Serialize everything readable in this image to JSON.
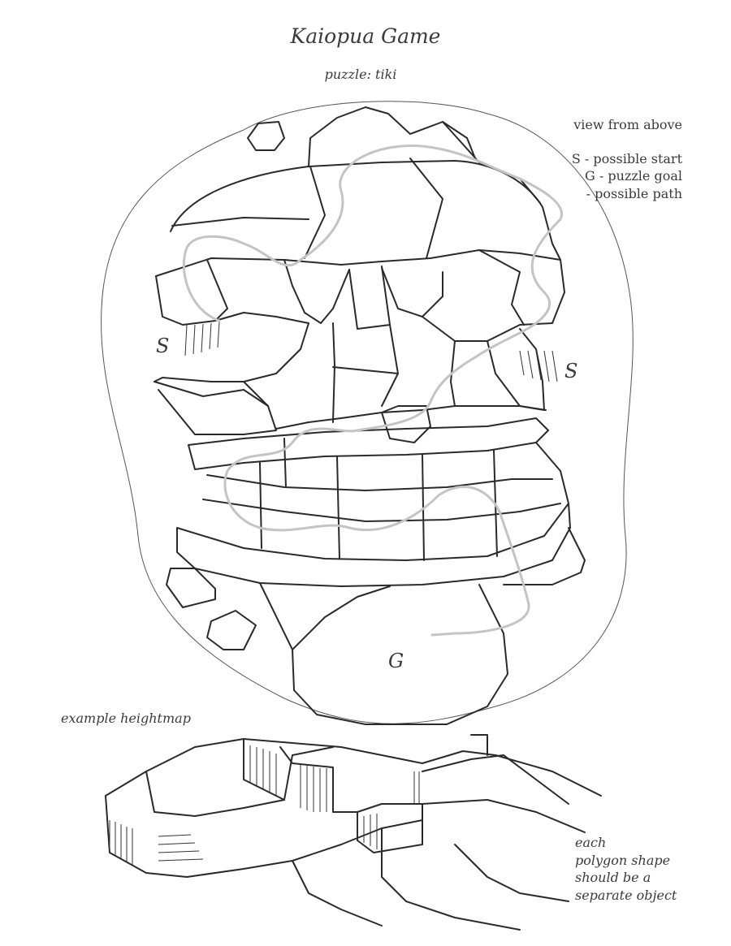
{
  "title": "Kaiopua Game",
  "subtitle": "puzzle: tiki",
  "legend": {
    "heading": "view from above",
    "start": "S - possible start",
    "goal": "G - puzzle goal",
    "path": "- possible path"
  },
  "markers": {
    "start_left": "S",
    "start_right": "S",
    "goal": "G"
  },
  "example_label": "example heightmap",
  "note": [
    "each",
    "polygon shape",
    "should be a",
    "separate object"
  ],
  "colors": {
    "ink": "#2a2a2a",
    "path": "#c4c4c4",
    "paper": "#ffffff"
  }
}
